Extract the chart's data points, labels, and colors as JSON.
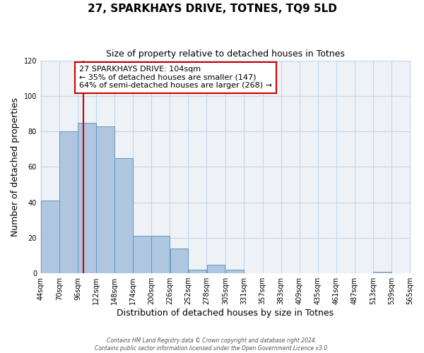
{
  "title": "27, SPARKHAYS DRIVE, TOTNES, TQ9 5LD",
  "subtitle": "Size of property relative to detached houses in Totnes",
  "xlabel": "Distribution of detached houses by size in Totnes",
  "ylabel": "Number of detached properties",
  "bin_edges": [
    44,
    70,
    96,
    122,
    148,
    174,
    200,
    226,
    252,
    278,
    305,
    331,
    357,
    383,
    409,
    435,
    461,
    487,
    513,
    539,
    565
  ],
  "bin_counts": [
    41,
    80,
    85,
    83,
    65,
    21,
    21,
    14,
    2,
    5,
    2,
    0,
    0,
    0,
    0,
    0,
    0,
    0,
    1,
    0
  ],
  "bar_color": "#aec6e0",
  "bar_edge_color": "#6699bb",
  "vline_color": "#cc0000",
  "vline_x": 104,
  "annotation_box_text": "27 SPARKHAYS DRIVE: 104sqm\n← 35% of detached houses are smaller (147)\n64% of semi-detached houses are larger (268) →",
  "annotation_box_edge_color": "#cc0000",
  "annotation_box_facecolor": "white",
  "ylim": [
    0,
    120
  ],
  "yticks": [
    0,
    20,
    40,
    60,
    80,
    100,
    120
  ],
  "tick_labels": [
    "44sqm",
    "70sqm",
    "96sqm",
    "122sqm",
    "148sqm",
    "174sqm",
    "200sqm",
    "226sqm",
    "252sqm",
    "278sqm",
    "305sqm",
    "331sqm",
    "357sqm",
    "383sqm",
    "409sqm",
    "435sqm",
    "461sqm",
    "487sqm",
    "513sqm",
    "539sqm",
    "565sqm"
  ],
  "footer1": "Contains HM Land Registry data © Crown copyright and database right 2024.",
  "footer2": "Contains public sector information licensed under the Open Government Licence v3.0.",
  "bg_color": "#eef2f7",
  "grid_color": "#c5d5e5",
  "title_fontsize": 11,
  "subtitle_fontsize": 9,
  "xlabel_fontsize": 9,
  "ylabel_fontsize": 9,
  "annot_fontsize": 8,
  "tick_fontsize": 7
}
